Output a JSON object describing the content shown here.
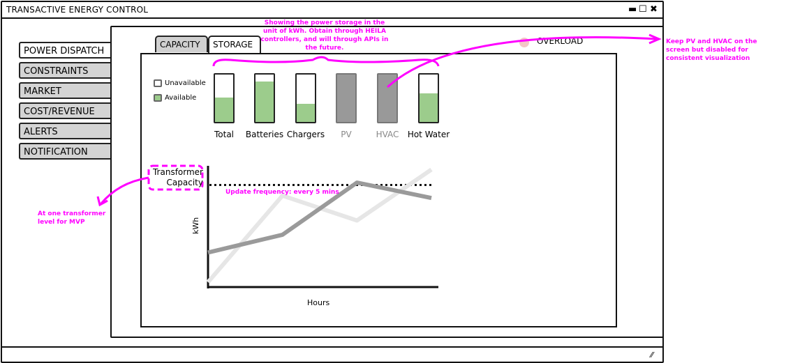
{
  "window": {
    "title": "TRANSACTIVE ENERGY CONTROL"
  },
  "window_controls": {
    "minimize": "▬",
    "maximize": "☐",
    "close": "✖"
  },
  "sidebar": {
    "items": [
      {
        "label": "POWER DISPATCH",
        "active": true
      },
      {
        "label": "CONSTRAINTS"
      },
      {
        "label": "MARKET"
      },
      {
        "label": "COST/REVENUE"
      },
      {
        "label": "ALERTS"
      },
      {
        "label": "NOTIFICATION"
      }
    ]
  },
  "tabs": [
    {
      "label": "CAPACITY",
      "active": false
    },
    {
      "label": "STORAGE",
      "active": true
    }
  ],
  "overload": {
    "label": "OVERLOAD",
    "color": "#f4c6c6"
  },
  "legend": {
    "unavailable": "Unavailable",
    "available": "Available",
    "available_color": "#9ccc8c"
  },
  "storage_bars": [
    {
      "label": "Total",
      "available_fraction": 0.52
    },
    {
      "label": "Batteries",
      "available_fraction": 0.85
    },
    {
      "label": "Chargers",
      "available_fraction": 0.38
    },
    {
      "label": "PV",
      "disabled": true
    },
    {
      "label": "HVAC",
      "disabled": true
    },
    {
      "label": "Hot Water",
      "available_fraction": 0.6
    }
  ],
  "annotations": {
    "storage_note": "Showing the power storage in the unit of kWh. Obtain through HEILA controllers, and will through APIs in the future.",
    "pv_hvac_note": "Keep PV and HVAC on the screen but disabled for consistent visualization",
    "transformer_note": "At one transformer level for MVP",
    "update_note": "Update frequency: every 5 mins"
  },
  "chart_data": {
    "type": "line",
    "xlabel": "Hours",
    "ylabel": "kWh",
    "threshold_label": "Transformer Capacity",
    "threshold": 8.5,
    "ylim": [
      0,
      10
    ],
    "x": [
      0,
      1,
      2,
      3
    ],
    "series": [
      {
        "values": [
          2.8,
          4.3,
          8.7,
          7.4
        ],
        "color": "#9a9a9a"
      },
      {
        "values": [
          0.3,
          7.6,
          5.5,
          9.8
        ],
        "color": "#e6e6e6"
      }
    ]
  }
}
